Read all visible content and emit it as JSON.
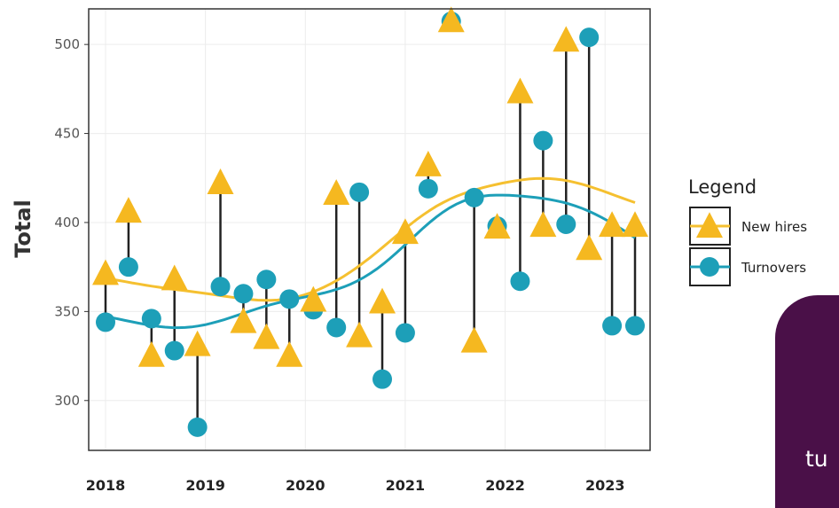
{
  "chart_data": {
    "type": "scatter",
    "ylabel": "Total",
    "xlabel": "",
    "xlim": [
      2018,
      2023.3
    ],
    "ylim": [
      272,
      520
    ],
    "yticks": [
      300,
      350,
      400,
      450,
      500
    ],
    "xticks": [
      2018,
      2019,
      2020,
      2021,
      2022,
      2023
    ],
    "x_tick_labels": [
      "2018",
      "2019",
      "2020",
      "2021",
      "2022",
      "2023"
    ],
    "grid": true,
    "legend_position": "right",
    "legend_title": "Legend",
    "connector_lines": true,
    "x": [
      2018.0,
      2018.23,
      2018.46,
      2018.69,
      2018.92,
      2019.15,
      2019.38,
      2019.61,
      2019.84,
      2020.08,
      2020.31,
      2020.54,
      2020.77,
      2021.0,
      2021.23,
      2021.46,
      2021.69,
      2021.92,
      2022.15,
      2022.38,
      2022.61,
      2022.84,
      2023.07,
      2023.3
    ],
    "series": [
      {
        "name": "New hires",
        "marker": "triangle",
        "color": "#f5b820",
        "smooth_color": "#f5c030",
        "values": [
          371,
          406,
          325,
          368,
          331,
          422,
          344,
          335,
          325,
          356,
          416,
          336,
          355,
          394,
          432,
          513,
          333,
          397,
          473,
          398,
          502,
          385,
          398,
          398
        ]
      },
      {
        "name": "Turnovers",
        "marker": "circle",
        "color": "#1d9fb8",
        "smooth_color": "#1d9fb8",
        "values": [
          344,
          375,
          346,
          328,
          285,
          364,
          360,
          368,
          357,
          351,
          341,
          417,
          312,
          338,
          419,
          513,
          414,
          398,
          367,
          446,
          399,
          504,
          342,
          342
        ]
      }
    ]
  },
  "corner_panel": {
    "text": "tu",
    "color": "#4a1048"
  }
}
